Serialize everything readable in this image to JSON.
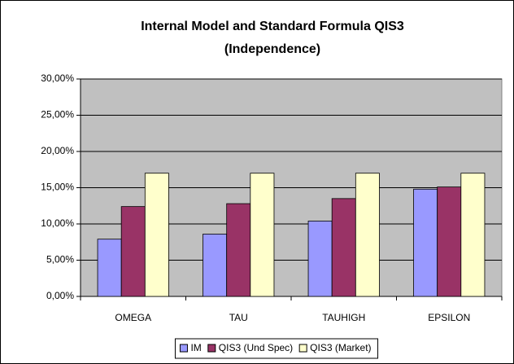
{
  "chart_data": {
    "type": "bar",
    "title": [
      "Internal Model and Standard Formula QIS3",
      "(Independence)"
    ],
    "categories": [
      "OMEGA",
      "TAU",
      "TAUHIGH",
      "EPSILON"
    ],
    "series": [
      {
        "name": "IM",
        "color": "#9999ff",
        "values": [
          7.9,
          8.6,
          10.4,
          14.8
        ]
      },
      {
        "name": "QIS3 (Und Spec)",
        "color": "#993366",
        "values": [
          12.4,
          12.8,
          13.5,
          15.1
        ]
      },
      {
        "name": "QIS3 (Market)",
        "color": "#ffffcc",
        "values": [
          17,
          17,
          17,
          17
        ]
      }
    ],
    "ylim": [
      0,
      30
    ],
    "yticks": [
      {
        "value": 0,
        "label": "0,00%"
      },
      {
        "value": 5,
        "label": "5,00%"
      },
      {
        "value": 10,
        "label": "10,00%"
      },
      {
        "value": 15,
        "label": "15,00%"
      },
      {
        "value": 20,
        "label": "20,00%"
      },
      {
        "value": 25,
        "label": "25,00%"
      },
      {
        "value": 30,
        "label": "30,00%"
      }
    ],
    "grid": true,
    "legend": "bottom"
  }
}
